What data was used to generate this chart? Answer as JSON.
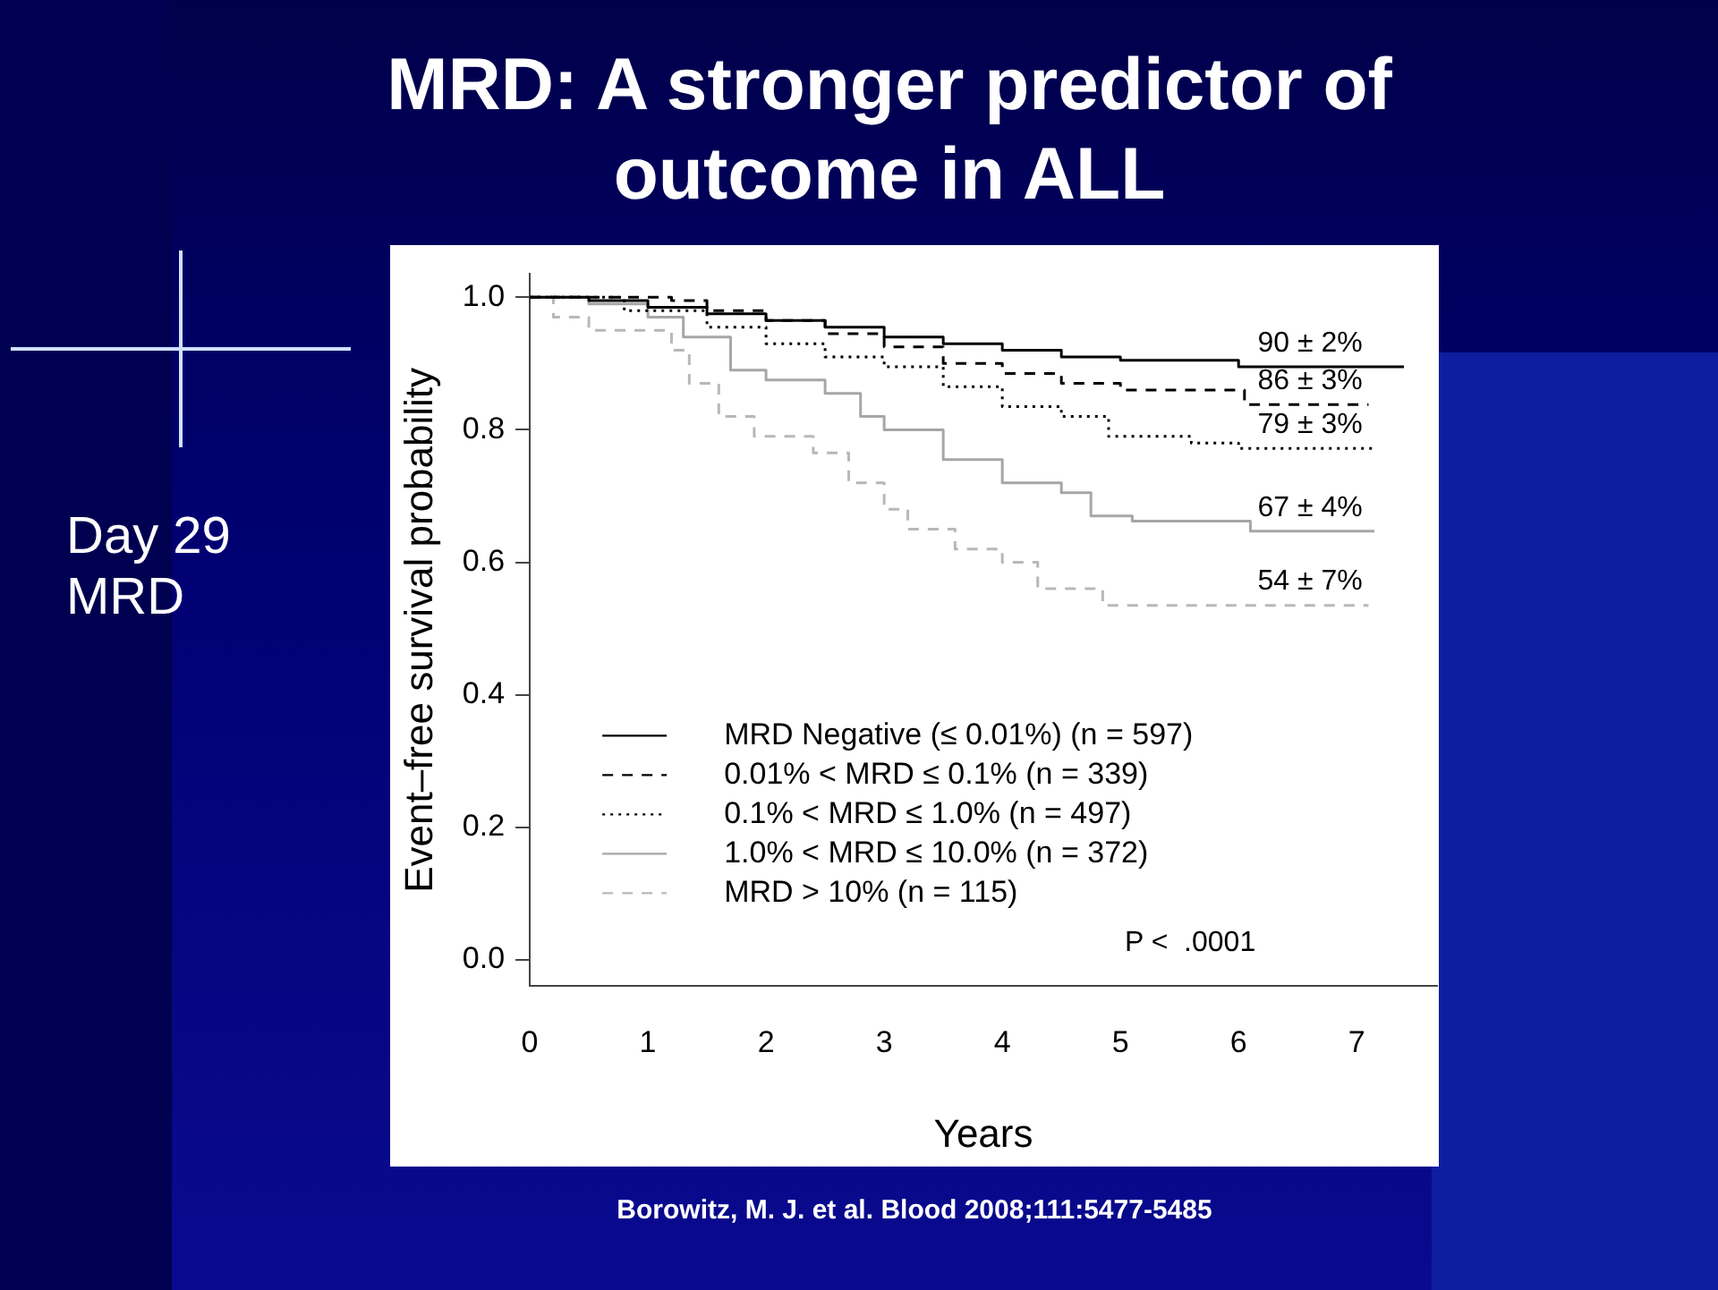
{
  "chart_data": {
    "type": "step",
    "title": "MRD: A stronger predictor of outcome in ALL",
    "xlabel": "Years",
    "ylabel": "Event–free survival probability",
    "xlim": [
      0,
      7.68
    ],
    "ylim": [
      -0.04,
      1.035
    ],
    "xticks": [
      0,
      1,
      2,
      3,
      4,
      5,
      6,
      7
    ],
    "yticks": [
      {
        "value": 0,
        "label": "0.0"
      },
      {
        "value": 0.2,
        "label": "0.2"
      },
      {
        "value": 0.4,
        "label": "0.4"
      },
      {
        "value": 0.6,
        "label": "0.6"
      },
      {
        "value": 0.8,
        "label": "0.8"
      },
      {
        "value": 1,
        "label": "1.0"
      }
    ],
    "grid": false,
    "legend": "bottom left",
    "marker": "none",
    "series": [
      {
        "name": "MRD Negative (≤ 0.01%) (n = 597)",
        "color": "#000000",
        "line_style": "solid",
        "x": [
          0,
          0.5,
          1,
          1.5,
          2,
          2.5,
          3,
          3.5,
          4,
          4.5,
          5,
          6,
          7.4
        ],
        "values": [
          1,
          0.995,
          0.985,
          0.975,
          0.965,
          0.955,
          0.94,
          0.93,
          0.92,
          0.91,
          0.905,
          0.895,
          0.895
        ]
      },
      {
        "name": "0.01% < MRD ≤ 0.1% (n = 339)",
        "color": "#000000",
        "line_style": "dashed",
        "x": [
          0,
          1.2,
          1.5,
          2,
          2.5,
          3,
          3.5,
          4,
          4.5,
          5,
          6.05,
          7.1
        ],
        "values": [
          1,
          0.995,
          0.98,
          0.965,
          0.945,
          0.925,
          0.9,
          0.885,
          0.87,
          0.86,
          0.838,
          0.838
        ]
      },
      {
        "name": "0.1% < MRD ≤ 1.0% (n = 497)",
        "color": "#000000",
        "line_style": "dotted",
        "x": [
          0,
          0.8,
          1.5,
          2,
          2.5,
          3,
          3.5,
          4,
          4.5,
          4.9,
          5.6,
          6,
          7.15
        ],
        "values": [
          1,
          0.98,
          0.955,
          0.93,
          0.91,
          0.895,
          0.865,
          0.835,
          0.82,
          0.79,
          0.78,
          0.772,
          0.772
        ]
      },
      {
        "name": "1.0% < MRD ≤ 10.0% (n = 372)",
        "color": "#a6a6a6",
        "line_style": "solid",
        "x": [
          0,
          0.5,
          1,
          1.3,
          1.7,
          2,
          2.5,
          2.8,
          3,
          3.5,
          4,
          4.5,
          4.75,
          5.1,
          6.1,
          7.15
        ],
        "values": [
          1,
          0.99,
          0.97,
          0.94,
          0.89,
          0.875,
          0.855,
          0.82,
          0.8,
          0.755,
          0.72,
          0.705,
          0.67,
          0.662,
          0.647,
          0.647
        ]
      },
      {
        "name": "MRD > 10% (n = 115)",
        "color": "#b8b8b8",
        "line_style": "dashed",
        "x": [
          0,
          0.2,
          0.5,
          1.2,
          1.35,
          1.6,
          1.9,
          2.4,
          2.7,
          3,
          3.2,
          3.6,
          4,
          4.3,
          4.85,
          7.1
        ],
        "values": [
          1,
          0.97,
          0.95,
          0.92,
          0.87,
          0.82,
          0.79,
          0.765,
          0.72,
          0.68,
          0.65,
          0.62,
          0.6,
          0.56,
          0.535,
          0.535
        ]
      }
    ],
    "annotations": [
      {
        "text": "90 ± 2%",
        "y": 0.895
      },
      {
        "text": "86 ± 3%",
        "y": 0.838
      },
      {
        "text": "79 ± 3%",
        "y": 0.772
      },
      {
        "text": "67 ± 4%",
        "y": 0.647
      },
      {
        "text": "54 ± 7%",
        "y": 0.535
      },
      "P <  .0001",
      "Day 29 MRD",
      "Borowitz, M. J. et al. Blood 2008;111:5477-5485"
    ]
  }
}
